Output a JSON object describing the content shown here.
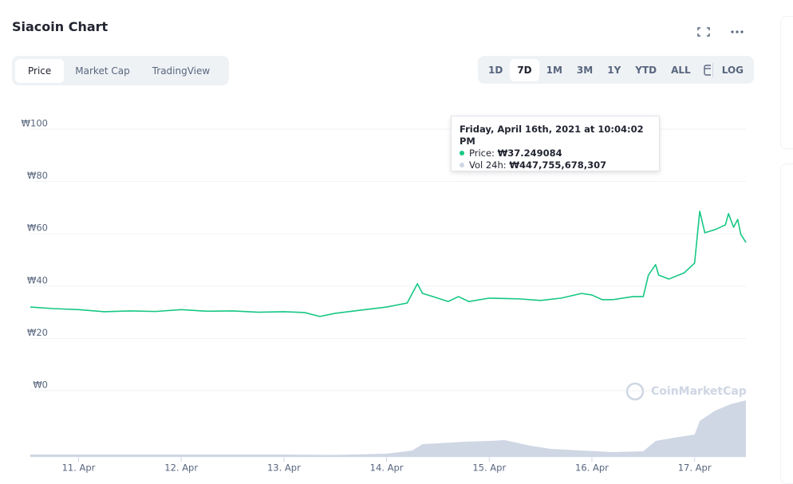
{
  "header": {
    "title": "Siacoin Chart"
  },
  "tabs": [
    "Price",
    "Market Cap",
    "TradingView"
  ],
  "ranges": [
    "1D",
    "7D",
    "1M",
    "3M",
    "1Y",
    "YTD",
    "ALL"
  ],
  "log": "LOG",
  "tooltip": {
    "date": "Friday, April 16th, 2021 at 10:04:02 PM",
    "price_label": "Price:",
    "price": "₩37.249084",
    "vol_label": "Vol 24h:",
    "vol": "₩447,755,678,307"
  },
  "watermark": "CoinMarketCap",
  "chart_data": {
    "type": "line",
    "xlim": [
      10.53,
      17.5
    ],
    "xticks": [
      {
        "value": 11,
        "label": "11. Apr"
      },
      {
        "value": 12,
        "label": "12. Apr"
      },
      {
        "value": 13,
        "label": "13. Apr"
      },
      {
        "value": 14,
        "label": "14. Apr"
      },
      {
        "value": 15,
        "label": "15. Apr"
      },
      {
        "value": 16,
        "label": "16. Apr"
      },
      {
        "value": 17,
        "label": "17. Apr"
      }
    ],
    "ylim": [
      0,
      100
    ],
    "yticks": [
      {
        "value": 0,
        "label": "₩0"
      },
      {
        "value": 20,
        "label": "₩20"
      },
      {
        "value": 40,
        "label": "₩40"
      },
      {
        "value": 60,
        "label": "₩60"
      },
      {
        "value": 80,
        "label": "₩80"
      },
      {
        "value": 100,
        "label": "₩100"
      }
    ],
    "y2lim": [
      0,
      6750000000000
    ],
    "grid": true,
    "series": [
      {
        "color": "#16c784",
        "x": [
          10.53,
          10.75,
          11,
          11.25,
          11.5,
          11.75,
          12,
          12.25,
          12.5,
          12.75,
          13,
          13.2,
          13.35,
          13.5,
          13.75,
          14,
          14.2,
          14.3,
          14.35,
          14.45,
          14.6,
          14.7,
          14.8,
          15,
          15.3,
          15.5,
          15.7,
          15.9,
          16,
          16.1,
          16.2,
          16.4,
          16.5,
          16.55,
          16.62,
          16.65,
          16.75,
          16.9,
          17,
          17.05,
          17.1,
          17.2,
          17.3,
          17.33,
          17.38,
          17.42,
          17.45,
          17.5
        ],
        "values": [
          32,
          31.4,
          31,
          30.2,
          30.5,
          30.3,
          31,
          30.4,
          30.5,
          30,
          30.2,
          29.9,
          28.4,
          29.6,
          30.8,
          32,
          33.5,
          40.9,
          37.2,
          36,
          34.1,
          36,
          34.1,
          35.4,
          35.1,
          34.5,
          35.4,
          37.2,
          36.6,
          34.8,
          34.8,
          36,
          36,
          44.2,
          48.2,
          44.2,
          42.7,
          45.1,
          48.8,
          68.6,
          60.4,
          61.6,
          63.4,
          67.7,
          62.5,
          65.5,
          59.8,
          56.7
        ]
      },
      {
        "color": "#cfd6e4",
        "type": "area",
        "axis": "y2",
        "x": [
          10.53,
          11,
          12,
          13,
          13.5,
          14,
          14.25,
          14.35,
          14.5,
          14.75,
          15,
          15.15,
          15.4,
          15.6,
          15.9,
          16.2,
          16.5,
          16.62,
          16.8,
          17,
          17.05,
          17.2,
          17.35,
          17.5
        ],
        "values": [
          225000000000,
          225000000000,
          225000000000,
          225000000000,
          187500000000,
          300000000000,
          600000000000,
          1200000000000,
          1275000000000,
          1425000000000,
          1500000000000,
          1575000000000,
          1050000000000,
          750000000000,
          600000000000,
          450000000000,
          525000000000,
          1500000000000,
          1800000000000,
          2100000000000,
          3375000000000,
          4350000000000,
          4950000000000,
          5325000000000
        ]
      }
    ]
  }
}
